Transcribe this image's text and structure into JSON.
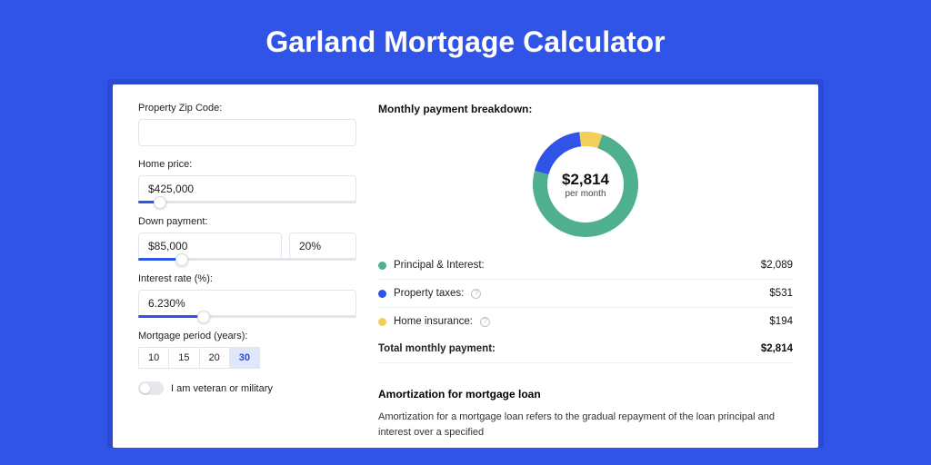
{
  "page": {
    "title": "Garland Mortgage Calculator",
    "background_color": "#3053e8",
    "title_color": "#ffffff",
    "title_fontsize": 32
  },
  "form": {
    "zip": {
      "label": "Property Zip Code:",
      "value": ""
    },
    "price": {
      "label": "Home price:",
      "value": "$425,000",
      "slider_pct": 10
    },
    "down": {
      "label": "Down payment:",
      "value": "$85,000",
      "pct": "20%",
      "slider_pct": 20
    },
    "rate": {
      "label": "Interest rate (%):",
      "value": "6.230%",
      "slider_pct": 30
    },
    "period": {
      "label": "Mortgage period (years):",
      "options": [
        "10",
        "15",
        "20",
        "30"
      ],
      "selected": "30"
    },
    "veteran": {
      "label": "I am veteran or military",
      "checked": false
    }
  },
  "breakdown": {
    "title": "Monthly payment breakdown:",
    "center_amount": "$2,814",
    "center_sub": "per month",
    "donut": {
      "size": 120,
      "thickness": 16,
      "slices": [
        {
          "label": "Principal & Interest:",
          "value": "$2,089",
          "pct": 74,
          "color": "#4fb08d"
        },
        {
          "label": "Property taxes:",
          "value": "$531",
          "pct": 19,
          "color": "#3053e8",
          "info": true
        },
        {
          "label": "Home insurance:",
          "value": "$194",
          "pct": 7,
          "color": "#f3ce58",
          "info": true
        }
      ]
    },
    "total": {
      "label": "Total monthly payment:",
      "value": "$2,814"
    }
  },
  "amort": {
    "title": "Amortization for mortgage loan",
    "text": "Amortization for a mortgage loan refers to the gradual repayment of the loan principal and interest over a specified"
  }
}
